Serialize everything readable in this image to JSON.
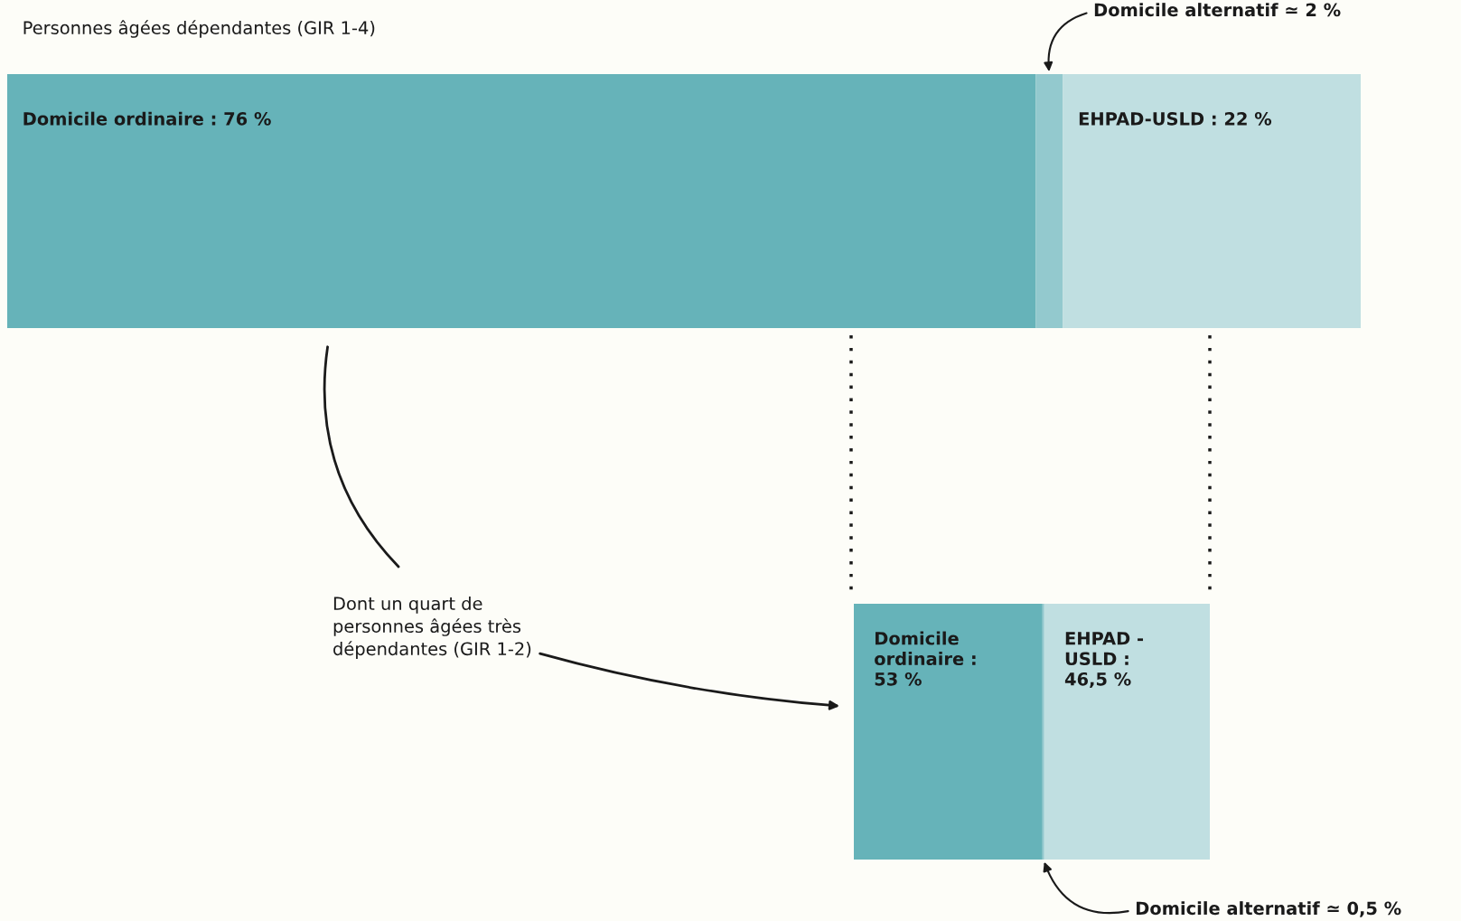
{
  "chart_data": [
    {
      "type": "bar",
      "orientation": "horizontal",
      "stacked": true,
      "title": "Personnes âgées dépendantes (GIR 1-4)",
      "categories": [
        null
      ],
      "xlim": [
        0,
        100
      ],
      "tick_labels": false,
      "series": [
        {
          "color": "#66b3b9",
          "values": [
            76
          ],
          "value_labels": [
            "Domicile ordinaire : 76 %"
          ]
        },
        {
          "color": "#93c9ce",
          "values": [
            2
          ],
          "value_labels": [
            "Domicile alternatif ≃ 2 %"
          ]
        },
        {
          "color": "#c0dfe1",
          "values": [
            22
          ],
          "value_labels": [
            "EHPAD-USLD : 22 %"
          ]
        }
      ]
    },
    {
      "type": "bar",
      "orientation": "horizontal",
      "stacked": true,
      "categories": [
        null
      ],
      "xlim": [
        0,
        100
      ],
      "tick_labels": false,
      "annotations": [
        "Dont un quart de\npersonnes âgées très\ndépendantes (GIR 1-2)"
      ],
      "series": [
        {
          "color": "#66b3b9",
          "values": [
            53
          ],
          "value_labels": [
            "Domicile\nordinaire :\n53 %"
          ]
        },
        {
          "color": "#93c9ce",
          "values": [
            0.5
          ],
          "value_labels": [
            "Domicile alternatif ≃ 0,5 %"
          ]
        },
        {
          "color": "#c0dfe1",
          "values": [
            46.5
          ],
          "value_labels": [
            "EHPAD -\nUSLD :\n46,5 %"
          ]
        }
      ]
    }
  ]
}
